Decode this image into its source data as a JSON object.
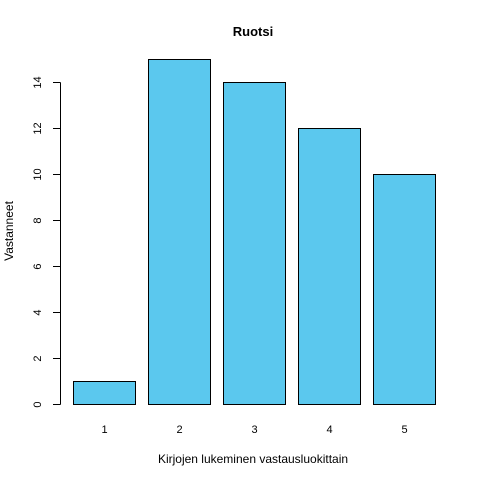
{
  "chart_data": {
    "type": "bar",
    "title": "Ruotsi",
    "xlabel": "Kirjojen lukeminen vastausluokittain",
    "ylabel": "Vastanneet",
    "categories": [
      "1",
      "2",
      "3",
      "4",
      "5"
    ],
    "values": [
      1,
      15,
      14,
      12,
      10
    ],
    "yticks": [
      0,
      2,
      4,
      6,
      8,
      10,
      12,
      14
    ],
    "ylim": [
      0,
      15
    ],
    "bar_color": "#5bc8ee",
    "grid": false,
    "legend": "none"
  }
}
